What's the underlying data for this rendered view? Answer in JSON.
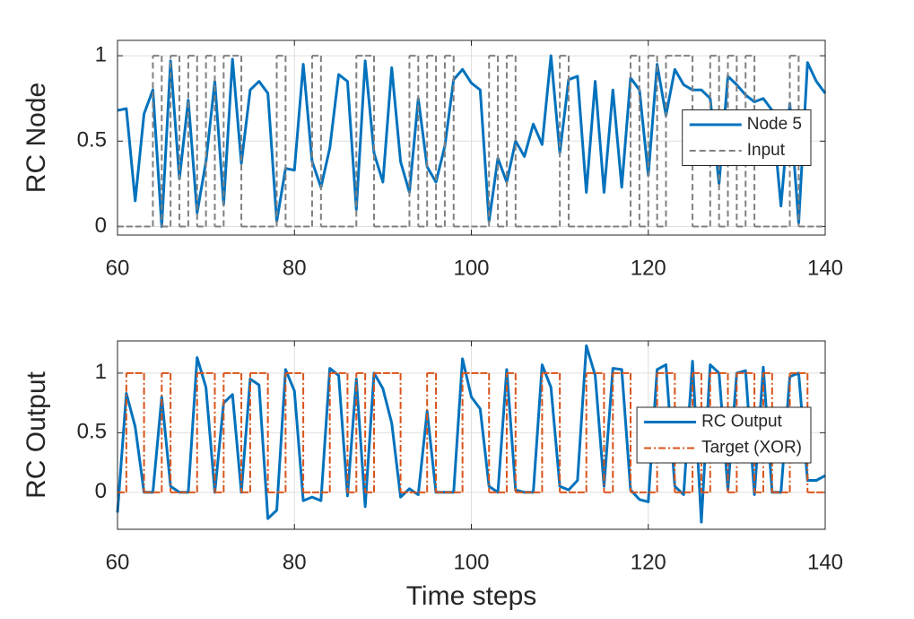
{
  "chart_data": [
    {
      "type": "line",
      "ylabel": "RC Node",
      "x": [
        60,
        61,
        62,
        63,
        64,
        65,
        66,
        67,
        68,
        69,
        70,
        71,
        72,
        73,
        74,
        75,
        76,
        77,
        78,
        79,
        80,
        81,
        82,
        83,
        84,
        85,
        86,
        87,
        88,
        89,
        90,
        91,
        92,
        93,
        94,
        95,
        96,
        97,
        98,
        99,
        100,
        101,
        102,
        103,
        104,
        105,
        106,
        107,
        108,
        109,
        110,
        111,
        112,
        113,
        114,
        115,
        116,
        117,
        118,
        119,
        120,
        121,
        122,
        123,
        124,
        125,
        126,
        127,
        128,
        129,
        130,
        131,
        132,
        133,
        134,
        135,
        136,
        137,
        138,
        139,
        140
      ],
      "xlim": [
        60,
        140
      ],
      "xticks": [
        60,
        80,
        100,
        120,
        140
      ],
      "ylim": [
        -0.05,
        1.09
      ],
      "yticks": [
        0,
        0.5,
        1
      ],
      "grid": true,
      "legend": "east",
      "series": [
        {
          "name": "Node 5",
          "color": "#0072bd",
          "style": "solid",
          "step": false,
          "values": [
            0.68,
            0.69,
            0.15,
            0.66,
            0.8,
            0.0,
            0.97,
            0.28,
            0.74,
            0.08,
            0.38,
            0.85,
            0.13,
            0.98,
            0.37,
            0.8,
            0.85,
            0.78,
            0.03,
            0.34,
            0.33,
            0.95,
            0.38,
            0.23,
            0.46,
            0.89,
            0.85,
            0.1,
            0.97,
            0.43,
            0.26,
            0.93,
            0.38,
            0.2,
            0.75,
            0.35,
            0.26,
            0.47,
            0.86,
            0.92,
            0.84,
            0.8,
            0.03,
            0.4,
            0.26,
            0.5,
            0.41,
            0.6,
            0.48,
            1.0,
            0.43,
            0.86,
            0.88,
            0.2,
            0.85,
            0.2,
            0.8,
            0.23,
            0.87,
            0.8,
            0.3,
            0.95,
            0.65,
            0.92,
            0.83,
            0.8,
            0.8,
            0.75,
            0.25,
            0.88,
            0.83,
            0.77,
            0.73,
            0.75,
            0.68,
            0.12,
            0.72,
            0.02,
            0.96,
            0.85,
            0.78
          ]
        },
        {
          "name": "Input",
          "color": "#808080",
          "style": "dashed",
          "step": true,
          "values": [
            0,
            0,
            0,
            0,
            1,
            0,
            1,
            0,
            1,
            0,
            1,
            0,
            1,
            1,
            0,
            0,
            0,
            0,
            1,
            0,
            0,
            0,
            1,
            0,
            0,
            0,
            0,
            1,
            1,
            0,
            0,
            0,
            0,
            1,
            0,
            1,
            0,
            1,
            0,
            0,
            0,
            0,
            1,
            0,
            1,
            0,
            0,
            0,
            0,
            0,
            1,
            0,
            0,
            0,
            0,
            0,
            0,
            0,
            1,
            0,
            1,
            0,
            1,
            1,
            1,
            0,
            0,
            1,
            0,
            1,
            0,
            1,
            0,
            0,
            0,
            0,
            1,
            0,
            0,
            0,
            0
          ]
        }
      ]
    },
    {
      "type": "line",
      "ylabel": "RC Output",
      "xlabel": "Time steps",
      "x": [
        60,
        61,
        62,
        63,
        64,
        65,
        66,
        67,
        68,
        69,
        70,
        71,
        72,
        73,
        74,
        75,
        76,
        77,
        78,
        79,
        80,
        81,
        82,
        83,
        84,
        85,
        86,
        87,
        88,
        89,
        90,
        91,
        92,
        93,
        94,
        95,
        96,
        97,
        98,
        99,
        100,
        101,
        102,
        103,
        104,
        105,
        106,
        107,
        108,
        109,
        110,
        111,
        112,
        113,
        114,
        115,
        116,
        117,
        118,
        119,
        120,
        121,
        122,
        123,
        124,
        125,
        126,
        127,
        128,
        129,
        130,
        131,
        132,
        133,
        134,
        135,
        136,
        137,
        138,
        139,
        140
      ],
      "xlim": [
        60,
        140
      ],
      "xticks": [
        60,
        80,
        100,
        120,
        140
      ],
      "ylim": [
        -0.31,
        1.27
      ],
      "yticks": [
        0,
        0.5,
        1
      ],
      "grid": true,
      "legend": "east",
      "series": [
        {
          "name": "RC Output",
          "color": "#0072bd",
          "style": "solid",
          "step": false,
          "values": [
            -0.17,
            0.83,
            0.55,
            0.0,
            0.0,
            0.8,
            0.05,
            0.0,
            0.0,
            1.13,
            0.88,
            0.0,
            0.75,
            0.82,
            0.0,
            0.95,
            0.9,
            -0.22,
            -0.15,
            1.03,
            0.85,
            -0.07,
            -0.04,
            -0.07,
            1.04,
            0.98,
            -0.03,
            0.95,
            -0.12,
            1.0,
            0.87,
            0.58,
            -0.04,
            0.03,
            -0.02,
            0.68,
            0.0,
            0.0,
            0.0,
            1.12,
            0.8,
            0.7,
            0.05,
            0.0,
            1.03,
            0.02,
            0.0,
            0.0,
            1.07,
            0.88,
            0.05,
            0.02,
            0.1,
            1.23,
            0.98,
            0.05,
            1.04,
            1.03,
            0.02,
            -0.06,
            -0.08,
            1.03,
            1.07,
            0.05,
            -0.02,
            1.1,
            -0.25,
            1.07,
            1.0,
            0.02,
            1.0,
            1.02,
            -0.02,
            1.05,
            0.0,
            0.0,
            0.97,
            1.0,
            0.1,
            0.1,
            0.14
          ]
        },
        {
          "name": "Target (XOR)",
          "color": "#d95319",
          "style": "dashdot",
          "step": true,
          "values": [
            0,
            1,
            1,
            0,
            0,
            1,
            0,
            0,
            0,
            1,
            1,
            0,
            1,
            1,
            0,
            1,
            1,
            0,
            0,
            1,
            1,
            0,
            0,
            0,
            1,
            1,
            0,
            1,
            0,
            1,
            1,
            1,
            0,
            0,
            0,
            1,
            0,
            0,
            0,
            1,
            1,
            1,
            0,
            0,
            1,
            0,
            0,
            0,
            1,
            1,
            0,
            0,
            0,
            1,
            1,
            0,
            1,
            1,
            0,
            0,
            0,
            1,
            1,
            0,
            0,
            1,
            0,
            1,
            1,
            0,
            1,
            1,
            0,
            1,
            0,
            0,
            1,
            1,
            0,
            0,
            0
          ]
        }
      ]
    }
  ]
}
